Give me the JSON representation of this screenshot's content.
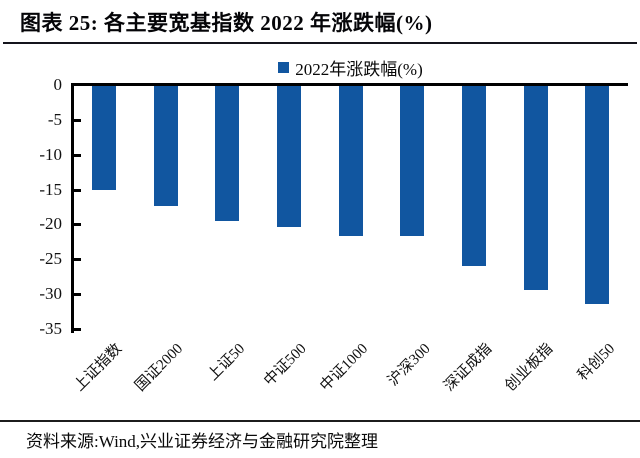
{
  "header": {
    "title": "图表 25: 各主要宽基指数 2022 年涨跌幅(%)"
  },
  "legend": {
    "label": "2022年涨跌幅(%)",
    "marker_color": "#1156A0"
  },
  "footer": {
    "source": "资料来源:Wind,兴业证券经济与金融研究院整理"
  },
  "chart_data": {
    "type": "bar",
    "title": "图表 25: 各主要宽基指数 2022 年涨跌幅(%)",
    "categories": [
      "上证指数",
      "国证2000",
      "上证50",
      "中证500",
      "中证1000",
      "沪深300",
      "深证成指",
      "创业板指",
      "科创50"
    ],
    "values": [
      -15.1,
      -17.3,
      -19.5,
      -20.4,
      -21.6,
      -21.6,
      -25.9,
      -29.4,
      -31.4
    ],
    "series_name": "2022年涨跌幅(%)",
    "xlabel": "",
    "ylabel": "",
    "ylim": [
      -35,
      0
    ],
    "yticks": [
      0,
      -5,
      -10,
      -15,
      -20,
      -25,
      -30,
      -35
    ],
    "bar_color": "#1156A0",
    "axis_color": "#000000",
    "grid": "off",
    "legend_position": "top-center"
  }
}
